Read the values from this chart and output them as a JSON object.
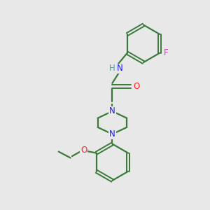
{
  "bg_color": "#e8e8e8",
  "bond_color": "#3a7a3a",
  "N_color": "#1a1aff",
  "O_color": "#ff2020",
  "F_color": "#cc44cc",
  "H_color": "#5a9a9a",
  "line_width": 1.6,
  "font_size": 8.5,
  "fig_width": 3.0,
  "fig_height": 3.0,
  "dpi": 100,
  "xlim": [
    0,
    10
  ],
  "ylim": [
    0,
    10
  ]
}
